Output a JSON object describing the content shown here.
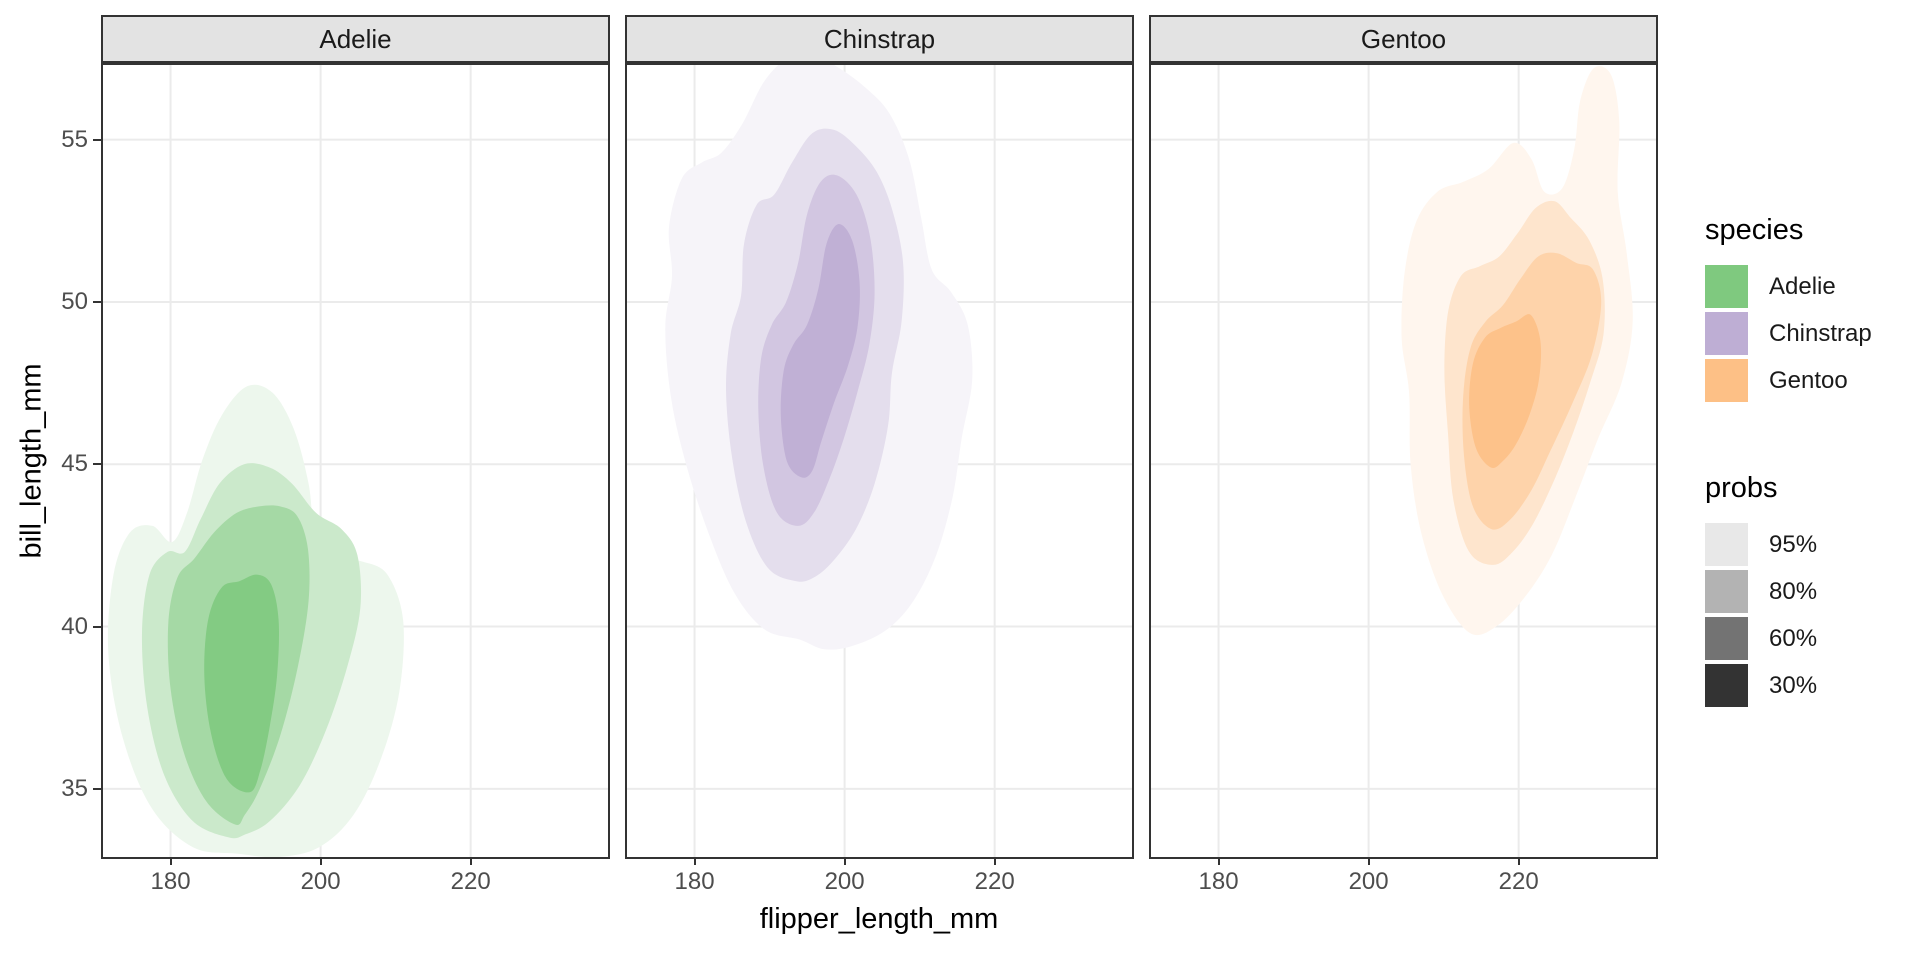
{
  "chart_data": {
    "type": "filled_density_contour_2d_faceted",
    "xlabel": "flipper_length_mm",
    "ylabel": "bill_length_mm",
    "x_domain": [
      171.0,
      238.3
    ],
    "y_domain": [
      32.9,
      57.3
    ],
    "x_ticks": [
      180,
      200,
      220
    ],
    "y_ticks": [
      35,
      40,
      45,
      50,
      55
    ],
    "grid": "major",
    "panel_bg": "#FFFFFF",
    "grid_color": "#EBEBEB",
    "border_color": "#333333",
    "strip_bg": "#E3E3E3",
    "levels": [
      {
        "prob": "95%",
        "alpha": 0.14
      },
      {
        "prob": "80%",
        "alpha": 0.41
      },
      {
        "prob": "60%",
        "alpha": 0.7
      },
      {
        "prob": "30%",
        "alpha": 0.97
      }
    ],
    "facets": [
      {
        "species": "Adelie",
        "color": "#7FC97F",
        "contours": {
          "95%": [
            [
              189,
              33.0
            ],
            [
              183,
              33.2
            ],
            [
              177.5,
              34.4
            ],
            [
              173.6,
              36.6
            ],
            [
              171.7,
              39.2
            ],
            [
              172.4,
              41.6
            ],
            [
              174.6,
              42.9
            ],
            [
              177.6,
              43.1
            ],
            [
              180.2,
              42.6
            ],
            [
              182.2,
              43.5
            ],
            [
              184.2,
              45.1
            ],
            [
              186.8,
              46.5
            ],
            [
              190.2,
              47.4
            ],
            [
              193.6,
              47.2
            ],
            [
              196.4,
              46.1
            ],
            [
              198.4,
              44.4
            ],
            [
              199.4,
              42.6
            ],
            [
              202.2,
              42.1
            ],
            [
              205.6,
              42.0
            ],
            [
              208.9,
              41.6
            ],
            [
              211.0,
              40.2
            ],
            [
              210.5,
              38.0
            ],
            [
              208.0,
              35.9
            ],
            [
              204.4,
              34.2
            ],
            [
              199.8,
              33.2
            ],
            [
              194.4,
              32.9
            ]
          ],
          "80%": [
            [
              187.8,
              33.5
            ],
            [
              183.0,
              34.0
            ],
            [
              179.2,
              35.4
            ],
            [
              176.9,
              37.5
            ],
            [
              176.2,
              39.8
            ],
            [
              177.2,
              41.6
            ],
            [
              179.6,
              42.3
            ],
            [
              181.9,
              42.3
            ],
            [
              184.0,
              43.3
            ],
            [
              186.5,
              44.4
            ],
            [
              189.8,
              45.0
            ],
            [
              193.2,
              44.9
            ],
            [
              196.2,
              44.4
            ],
            [
              199.4,
              43.5
            ],
            [
              202.8,
              43.0
            ],
            [
              204.9,
              42.2
            ],
            [
              205.3,
              40.6
            ],
            [
              203.6,
              38.8
            ],
            [
              200.7,
              36.8
            ],
            [
              197.2,
              35.1
            ],
            [
              193.2,
              34.0
            ],
            [
              190.0,
              33.6
            ]
          ],
          "60%": [
            [
              188.6,
              33.9
            ],
            [
              184.8,
              34.6
            ],
            [
              181.8,
              36.1
            ],
            [
              180.0,
              38.1
            ],
            [
              179.7,
              40.1
            ],
            [
              180.9,
              41.5
            ],
            [
              183.2,
              42.1
            ],
            [
              185.8,
              42.9
            ],
            [
              188.8,
              43.5
            ],
            [
              191.8,
              43.7
            ],
            [
              194.6,
              43.7
            ],
            [
              196.9,
              43.4
            ],
            [
              198.3,
              42.4
            ],
            [
              198.4,
              40.8
            ],
            [
              197.0,
              38.8
            ],
            [
              194.7,
              36.7
            ],
            [
              191.9,
              35.0
            ],
            [
              189.9,
              34.2
            ]
          ],
          "30%": [
            [
              190.6,
              34.9
            ],
            [
              187.5,
              35.3
            ],
            [
              185.4,
              36.7
            ],
            [
              184.5,
              38.5
            ],
            [
              185.0,
              40.2
            ],
            [
              186.8,
              41.2
            ],
            [
              189.2,
              41.4
            ],
            [
              191.5,
              41.6
            ],
            [
              193.4,
              41.3
            ],
            [
              194.4,
              40.2
            ],
            [
              194.2,
              38.5
            ],
            [
              193.2,
              36.9
            ],
            [
              192.0,
              35.6
            ]
          ]
        }
      },
      {
        "species": "Chinstrap",
        "color": "#BEAED4",
        "contours": {
          "95%": [
            [
              194,
              39.6
            ],
            [
              189.4,
              39.9
            ],
            [
              185.4,
              41.0
            ],
            [
              182.0,
              42.8
            ],
            [
              179.0,
              44.9
            ],
            [
              176.9,
              47.0
            ],
            [
              176.1,
              49.2
            ],
            [
              177.0,
              50.8
            ],
            [
              176.6,
              52.3
            ],
            [
              178.3,
              53.8
            ],
            [
              181.0,
              54.3
            ],
            [
              183.6,
              54.6
            ],
            [
              186.4,
              55.5
            ],
            [
              189.3,
              56.8
            ],
            [
              192.4,
              57.5
            ],
            [
              195.8,
              57.6
            ],
            [
              199.3,
              57.2
            ],
            [
              202.8,
              56.6
            ],
            [
              206.0,
              55.8
            ],
            [
              208.6,
              54.4
            ],
            [
              210.2,
              52.6
            ],
            [
              211.6,
              51.0
            ],
            [
              214.2,
              50.3
            ],
            [
              216.4,
              49.3
            ],
            [
              217.0,
              47.6
            ],
            [
              215.6,
              45.8
            ],
            [
              214.4,
              44.0
            ],
            [
              212.2,
              42.2
            ],
            [
              209.2,
              40.8
            ],
            [
              205.6,
              39.9
            ],
            [
              201.0,
              39.4
            ],
            [
              197.3,
              39.3
            ]
          ],
          "80%": [
            [
              193.5,
              41.4
            ],
            [
              189.8,
              41.8
            ],
            [
              186.9,
              43.2
            ],
            [
              185.0,
              45.2
            ],
            [
              184.2,
              47.3
            ],
            [
              184.8,
              49.0
            ],
            [
              186.2,
              50.2
            ],
            [
              186.6,
              51.8
            ],
            [
              188.3,
              53.0
            ],
            [
              190.6,
              53.3
            ],
            [
              193.0,
              54.3
            ],
            [
              195.7,
              55.2
            ],
            [
              198.6,
              55.3
            ],
            [
              201.5,
              54.8
            ],
            [
              204.3,
              54.0
            ],
            [
              206.4,
              52.8
            ],
            [
              207.8,
              51.2
            ],
            [
              207.6,
              49.4
            ],
            [
              206.3,
              47.8
            ],
            [
              205.8,
              46.2
            ],
            [
              204.0,
              44.4
            ],
            [
              201.5,
              43.0
            ],
            [
              198.4,
              42.0
            ],
            [
              195.8,
              41.5
            ]
          ],
          "60%": [
            [
              193.8,
              43.1
            ],
            [
              191.0,
              43.5
            ],
            [
              189.2,
              44.9
            ],
            [
              188.5,
              46.7
            ],
            [
              188.9,
              48.3
            ],
            [
              190.3,
              49.3
            ],
            [
              192.2,
              50.0
            ],
            [
              193.8,
              51.2
            ],
            [
              195.0,
              52.7
            ],
            [
              196.8,
              53.7
            ],
            [
              199.0,
              53.9
            ],
            [
              201.6,
              53.3
            ],
            [
              203.4,
              52.0
            ],
            [
              204.0,
              50.3
            ],
            [
              203.3,
              48.7
            ],
            [
              201.8,
              47.3
            ],
            [
              199.9,
              45.8
            ],
            [
              197.9,
              44.5
            ],
            [
              195.9,
              43.5
            ]
          ],
          "30%": [
            [
              194.2,
              44.6
            ],
            [
              192.3,
              45.1
            ],
            [
              191.5,
              46.5
            ],
            [
              191.9,
              47.9
            ],
            [
              193.2,
              48.7
            ],
            [
              195.0,
              49.3
            ],
            [
              196.5,
              50.4
            ],
            [
              197.6,
              51.8
            ],
            [
              199.2,
              52.4
            ],
            [
              201.0,
              51.9
            ],
            [
              202.0,
              50.6
            ],
            [
              201.7,
              49.2
            ],
            [
              200.4,
              48.0
            ],
            [
              198.6,
              46.9
            ],
            [
              196.9,
              45.7
            ],
            [
              195.7,
              44.8
            ]
          ]
        }
      },
      {
        "species": "Gentoo",
        "color": "#FDC086",
        "contours": {
          "95%": [
            [
              213.5,
              39.8
            ],
            [
              209.8,
              41.0
            ],
            [
              207.0,
              42.9
            ],
            [
              205.6,
              45.0
            ],
            [
              205.4,
              47.2
            ],
            [
              204.4,
              48.9
            ],
            [
              204.8,
              50.9
            ],
            [
              206.4,
              52.5
            ],
            [
              209.2,
              53.4
            ],
            [
              212.6,
              53.7
            ],
            [
              216.0,
              54.1
            ],
            [
              219.3,
              54.9
            ],
            [
              221.7,
              54.4
            ],
            [
              223.4,
              53.4
            ],
            [
              225.8,
              53.5
            ],
            [
              227.4,
              54.7
            ],
            [
              228.2,
              56.2
            ],
            [
              230.0,
              57.2
            ],
            [
              232.3,
              57.0
            ],
            [
              233.4,
              55.6
            ],
            [
              233.2,
              53.4
            ],
            [
              234.4,
              51.5
            ],
            [
              235.2,
              49.4
            ],
            [
              233.7,
              47.5
            ],
            [
              230.6,
              45.8
            ],
            [
              227.6,
              44.0
            ],
            [
              224.4,
              42.2
            ],
            [
              220.8,
              40.9
            ],
            [
              217.0,
              40.0
            ]
          ],
          "80%": [
            [
              216.6,
              41.9
            ],
            [
              213.4,
              42.3
            ],
            [
              211.3,
              43.9
            ],
            [
              210.6,
              45.9
            ],
            [
              210.1,
              47.9
            ],
            [
              210.6,
              49.7
            ],
            [
              212.3,
              50.8
            ],
            [
              214.8,
              51.1
            ],
            [
              217.4,
              51.4
            ],
            [
              219.8,
              52.1
            ],
            [
              222.3,
              52.9
            ],
            [
              224.8,
              53.1
            ],
            [
              226.9,
              52.6
            ],
            [
              229.4,
              51.9
            ],
            [
              231.2,
              50.7
            ],
            [
              231.3,
              49.0
            ],
            [
              229.5,
              47.5
            ],
            [
              227.3,
              46.0
            ],
            [
              224.9,
              44.6
            ],
            [
              222.0,
              43.2
            ],
            [
              219.2,
              42.3
            ]
          ],
          "60%": [
            [
              216.4,
              43.0
            ],
            [
              213.9,
              43.7
            ],
            [
              212.7,
              45.3
            ],
            [
              212.6,
              47.1
            ],
            [
              213.6,
              48.6
            ],
            [
              215.6,
              49.4
            ],
            [
              217.9,
              49.9
            ],
            [
              220.2,
              50.7
            ],
            [
              222.6,
              51.4
            ],
            [
              225.1,
              51.5
            ],
            [
              227.7,
              51.2
            ],
            [
              229.9,
              51.0
            ],
            [
              231.0,
              50.0
            ],
            [
              229.8,
              48.4
            ],
            [
              227.2,
              46.9
            ],
            [
              224.2,
              45.4
            ],
            [
              221.7,
              44.2
            ],
            [
              218.9,
              43.3
            ]
          ],
          "30%": [
            [
              216.3,
              44.9
            ],
            [
              214.3,
              45.5
            ],
            [
              213.4,
              46.8
            ],
            [
              213.9,
              48.1
            ],
            [
              215.5,
              48.9
            ],
            [
              217.6,
              49.2
            ],
            [
              219.7,
              49.4
            ],
            [
              221.6,
              49.6
            ],
            [
              222.9,
              48.8
            ],
            [
              222.7,
              47.6
            ],
            [
              221.4,
              46.5
            ],
            [
              219.6,
              45.6
            ],
            [
              217.9,
              45.1
            ]
          ]
        }
      }
    ],
    "legend": {
      "species_title": "species",
      "species": [
        {
          "label": "Adelie",
          "color": "#7FC97F"
        },
        {
          "label": "Chinstrap",
          "color": "#BEAED4"
        },
        {
          "label": "Gentoo",
          "color": "#FDC086"
        }
      ],
      "probs_title": "probs",
      "probs": [
        {
          "label": "95%",
          "color": "#E8E8E8"
        },
        {
          "label": "80%",
          "color": "#B3B3B3"
        },
        {
          "label": "60%",
          "color": "#737373"
        },
        {
          "label": "30%",
          "color": "#333333"
        }
      ]
    }
  }
}
